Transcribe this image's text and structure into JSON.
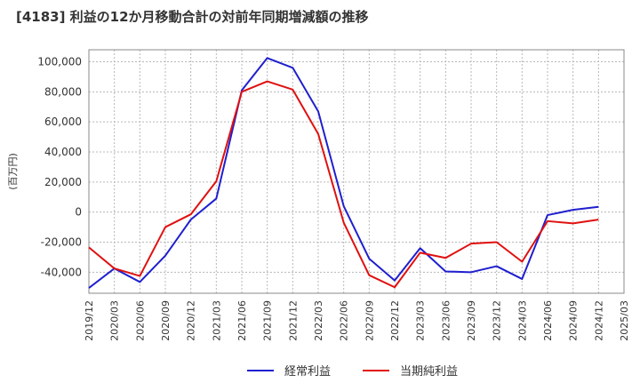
{
  "chart_data": {
    "type": "line",
    "title": "[4183]  利益の12か月移動合計の対前年同期増減額の推移",
    "ylabel": "(百万円)",
    "xlabel": "",
    "ylim": [
      -54000,
      108000
    ],
    "yticks": [
      -40000,
      -20000,
      0,
      20000,
      40000,
      60000,
      80000,
      100000
    ],
    "ytick_labels": [
      "-40,000",
      "-20,000",
      "0",
      "20,000",
      "40,000",
      "60,000",
      "80,000",
      "100,000"
    ],
    "categories": [
      "2019/12",
      "2020/03",
      "2020/06",
      "2020/09",
      "2020/12",
      "2021/03",
      "2021/06",
      "2021/09",
      "2021/12",
      "2022/03",
      "2022/06",
      "2022/09",
      "2022/12",
      "2023/03",
      "2023/06",
      "2023/09",
      "2023/12",
      "2024/03",
      "2024/06",
      "2024/09",
      "2024/12",
      "2025/03"
    ],
    "grid": true,
    "legend_position": "bottom",
    "series": [
      {
        "name": "経常利益",
        "color": "#1f1fcf",
        "values": [
          -50500,
          -37500,
          -46500,
          -29000,
          -5000,
          9000,
          81000,
          102500,
          96000,
          67000,
          4000,
          -31000,
          -45500,
          -24000,
          -39500,
          -40000,
          -36000,
          -44500,
          -2000,
          1500,
          3500,
          null
        ]
      },
      {
        "name": "当期純利益",
        "color": "#e01010",
        "values": [
          -23500,
          -37500,
          -42500,
          -10000,
          -1500,
          20500,
          80000,
          87000,
          81500,
          52000,
          -7000,
          -42000,
          -50000,
          -27000,
          -30500,
          -21000,
          -20000,
          -33000,
          -6000,
          -7500,
          -5000,
          null
        ]
      }
    ]
  }
}
